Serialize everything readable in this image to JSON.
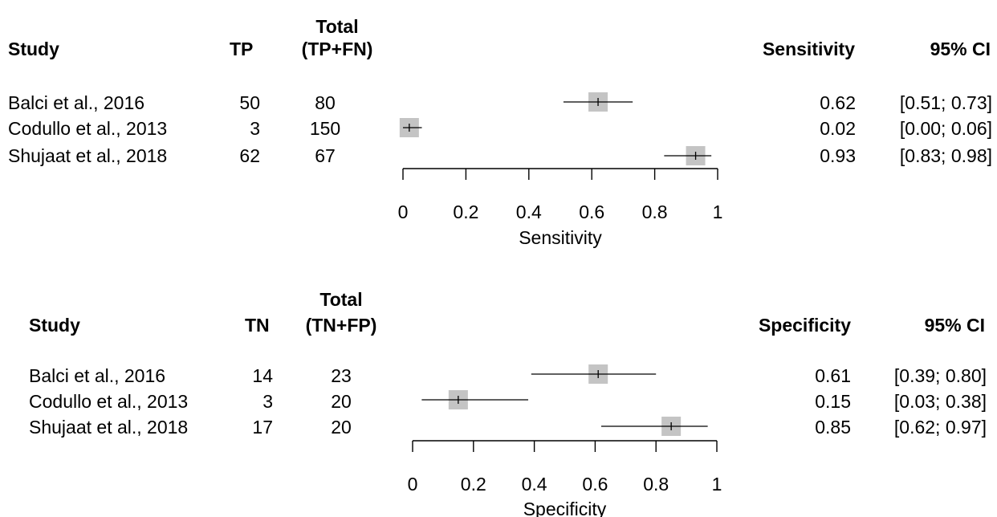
{
  "chart_data": [
    {
      "type": "forest",
      "headers": {
        "study": "Study",
        "count": "TP",
        "total_line1": "Total",
        "total_line2": "(TP+FN)",
        "estimate": "Sensitivity",
        "ci": "95% CI"
      },
      "rows": [
        {
          "study": "Balci et al., 2016",
          "count": "50",
          "total": "80",
          "estimate": 0.62,
          "lower": 0.51,
          "upper": 0.73,
          "estimate_label": "0.62",
          "ci_label": "[0.51; 0.73]"
        },
        {
          "study": "Codullo et al., 2013",
          "count": "3",
          "total": "150",
          "estimate": 0.02,
          "lower": 0.0,
          "upper": 0.06,
          "estimate_label": "0.02",
          "ci_label": "[0.00; 0.06]"
        },
        {
          "study": "Shujaat et al., 2018",
          "count": "62",
          "total": "67",
          "estimate": 0.93,
          "lower": 0.83,
          "upper": 0.98,
          "estimate_label": "0.93",
          "ci_label": "[0.83; 0.98]"
        }
      ],
      "xlim": [
        0,
        1
      ],
      "ticks": [
        "0",
        "0.2",
        "0.4",
        "0.6",
        "0.8",
        "1"
      ],
      "xlabel": "Sensitivity",
      "marker_color": "#c4c4c4"
    },
    {
      "type": "forest",
      "headers": {
        "study": "Study",
        "count": "TN",
        "total_line1": "Total",
        "total_line2": "(TN+FP)",
        "estimate": "Specificity",
        "ci": "95% CI"
      },
      "rows": [
        {
          "study": "Balci et al., 2016",
          "count": "14",
          "total": "23",
          "estimate": 0.61,
          "lower": 0.39,
          "upper": 0.8,
          "estimate_label": "0.61",
          "ci_label": "[0.39; 0.80]"
        },
        {
          "study": "Codullo et al., 2013",
          "count": "3",
          "total": "20",
          "estimate": 0.15,
          "lower": 0.03,
          "upper": 0.38,
          "estimate_label": "0.15",
          "ci_label": "[0.03; 0.38]"
        },
        {
          "study": "Shujaat et al., 2018",
          "count": "17",
          "total": "20",
          "estimate": 0.85,
          "lower": 0.62,
          "upper": 0.97,
          "estimate_label": "0.85",
          "ci_label": "[0.62; 0.97]"
        }
      ],
      "xlim": [
        0,
        1
      ],
      "ticks": [
        "0",
        "0.2",
        "0.4",
        "0.6",
        "0.8",
        "1"
      ],
      "xlabel": "Specificity",
      "marker_color": "#c4c4c4"
    }
  ]
}
